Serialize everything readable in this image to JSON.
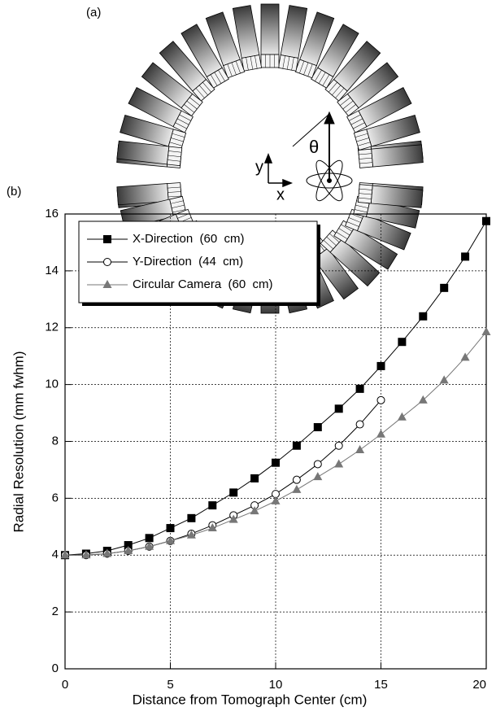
{
  "panel_a": {
    "label": "(a)",
    "axis_labels": [
      "y",
      "x"
    ],
    "angle": "θ"
  },
  "chart_data": {
    "type": "line",
    "panel_label": "(b)",
    "x_label": "Distance from Tomograph Center (cm)",
    "y_label": "Radial Resolution (mm fwhm)",
    "x": [
      0,
      1,
      2,
      3,
      4,
      5,
      6,
      7,
      8,
      9,
      10,
      11,
      12,
      13,
      14,
      15,
      16,
      17,
      18,
      19,
      20
    ],
    "series": [
      {
        "name": "X-Direction  (60  cm)",
        "color": "#000000",
        "marker": "square",
        "values": [
          4.0,
          4.05,
          4.15,
          4.35,
          4.6,
          4.95,
          5.3,
          5.75,
          6.2,
          6.7,
          7.25,
          7.85,
          8.5,
          9.15,
          9.85,
          10.65,
          11.5,
          12.4,
          13.4,
          14.5,
          15.75
        ]
      },
      {
        "name": "Y-Direction  (44  cm)",
        "color": "#000000",
        "marker": "circle",
        "values": [
          4.0,
          4.0,
          4.05,
          4.15,
          4.3,
          4.5,
          4.75,
          5.05,
          5.4,
          5.75,
          6.15,
          6.65,
          7.2,
          7.85,
          8.6,
          9.45,
          null,
          null,
          null,
          null,
          null
        ]
      },
      {
        "name": "Circular Camera  (60  cm)",
        "color": "#777777",
        "marker": "triangle",
        "values": [
          4.0,
          4.0,
          4.05,
          4.15,
          4.3,
          4.5,
          4.7,
          4.95,
          5.25,
          5.55,
          5.9,
          6.3,
          6.75,
          7.2,
          7.7,
          8.25,
          8.85,
          9.45,
          10.15,
          10.95,
          11.85
        ]
      }
    ],
    "xlim": [
      0,
      20
    ],
    "xticks": [
      0,
      5,
      10,
      15,
      20
    ],
    "ylim": [
      0,
      16
    ],
    "yticks": [
      0,
      2,
      4,
      6,
      8,
      10,
      12,
      14,
      16
    ],
    "grid": true,
    "legend": "upper left"
  }
}
